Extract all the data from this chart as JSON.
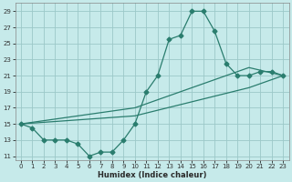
{
  "xlabel": "Humidex (Indice chaleur)",
  "line_color": "#2a7d6e",
  "bg_color": "#c6eaea",
  "grid_color": "#9cc8c8",
  "xlim": [
    -0.5,
    23.5
  ],
  "ylim": [
    10.5,
    30
  ],
  "xticks": [
    0,
    1,
    2,
    3,
    4,
    5,
    6,
    7,
    8,
    9,
    10,
    11,
    12,
    13,
    14,
    15,
    16,
    17,
    18,
    19,
    20,
    21,
    22,
    23
  ],
  "yticks": [
    11,
    13,
    15,
    17,
    19,
    21,
    23,
    25,
    27,
    29
  ],
  "line1_x": [
    0,
    1,
    2,
    3,
    4,
    5,
    6,
    7,
    8,
    9,
    10,
    11,
    12,
    13,
    14,
    15,
    16,
    17,
    18,
    19,
    20,
    21,
    22,
    23
  ],
  "line1_y": [
    15,
    14.5,
    13,
    13,
    13,
    12.5,
    11,
    11.5,
    11.5,
    13,
    15,
    19,
    21,
    25.5,
    26,
    29,
    29,
    26.5,
    22.5,
    21,
    21,
    21.5,
    21.5,
    21
  ],
  "line2_x": [
    0,
    10,
    20,
    23
  ],
  "line2_y": [
    15,
    17,
    22,
    21
  ],
  "line3_x": [
    0,
    10,
    20,
    23
  ],
  "line3_y": [
    15,
    16,
    19.5,
    21
  ],
  "marker": "D",
  "markersize": 2.5
}
